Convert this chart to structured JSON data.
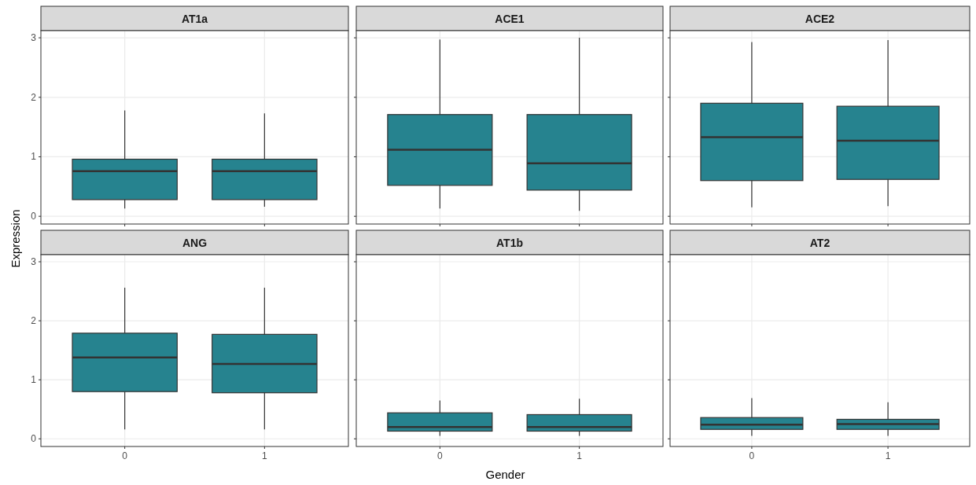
{
  "chart_data": [
    {
      "type": "box",
      "title": "AT1a",
      "ylabel": "Expression",
      "categories": [
        "0",
        "1"
      ],
      "color": "#26838f",
      "ylim": [
        -0.13,
        3.12
      ],
      "yticks": [
        0,
        1,
        2,
        3
      ],
      "grid": true,
      "tick_labels": "y",
      "boxes": [
        {
          "low": 0.13,
          "q1": 0.28,
          "median": 0.76,
          "q3": 0.96,
          "high": 1.78
        },
        {
          "low": 0.16,
          "q1": 0.28,
          "median": 0.76,
          "q3": 0.96,
          "high": 1.73
        }
      ]
    },
    {
      "type": "box",
      "title": "ACE1",
      "categories": [
        "0",
        "1"
      ],
      "color": "#26838f",
      "ylim": [
        -0.13,
        3.12
      ],
      "yticks": [
        0,
        1,
        2,
        3
      ],
      "grid": true,
      "tick_labels": false,
      "boxes": [
        {
          "low": 0.13,
          "q1": 0.52,
          "median": 1.12,
          "q3": 1.71,
          "high": 2.97
        },
        {
          "low": 0.09,
          "q1": 0.44,
          "median": 0.89,
          "q3": 1.71,
          "high": 3.0
        }
      ]
    },
    {
      "type": "box",
      "title": "ACE2",
      "categories": [
        "0",
        "1"
      ],
      "color": "#26838f",
      "ylim": [
        -0.13,
        3.12
      ],
      "yticks": [
        0,
        1,
        2,
        3
      ],
      "grid": true,
      "tick_labels": false,
      "boxes": [
        {
          "low": 0.15,
          "q1": 0.6,
          "median": 1.33,
          "q3": 1.9,
          "high": 2.93
        },
        {
          "low": 0.17,
          "q1": 0.62,
          "median": 1.27,
          "q3": 1.85,
          "high": 2.96
        }
      ]
    },
    {
      "type": "box",
      "title": "ANG",
      "categories": [
        "0",
        "1"
      ],
      "color": "#26838f",
      "ylim": [
        -0.13,
        3.12
      ],
      "yticks": [
        0,
        1,
        2,
        3
      ],
      "grid": true,
      "boxes": [
        {
          "low": 0.16,
          "q1": 0.8,
          "median": 1.38,
          "q3": 1.79,
          "high": 2.56
        },
        {
          "low": 0.16,
          "q1": 0.78,
          "median": 1.27,
          "q3": 1.77,
          "high": 2.56
        }
      ]
    },
    {
      "type": "box",
      "title": "AT1b",
      "xlabel": "Gender",
      "categories": [
        "0",
        "1"
      ],
      "color": "#26838f",
      "ylim": [
        -0.13,
        3.12
      ],
      "yticks": [
        0,
        1,
        2,
        3
      ],
      "grid": true,
      "tick_labels": "x",
      "boxes": [
        {
          "low": 0.05,
          "q1": 0.13,
          "median": 0.2,
          "q3": 0.44,
          "high": 0.65
        },
        {
          "low": 0.05,
          "q1": 0.13,
          "median": 0.2,
          "q3": 0.41,
          "high": 0.68
        }
      ]
    },
    {
      "type": "box",
      "title": "AT2",
      "categories": [
        "0",
        "1"
      ],
      "color": "#26838f",
      "ylim": [
        -0.13,
        3.12
      ],
      "yticks": [
        0,
        1,
        2,
        3
      ],
      "grid": true,
      "tick_labels": "x",
      "boxes": [
        {
          "low": 0.05,
          "q1": 0.16,
          "median": 0.24,
          "q3": 0.36,
          "high": 0.69
        },
        {
          "low": 0.05,
          "q1": 0.16,
          "median": 0.25,
          "q3": 0.33,
          "high": 0.62
        }
      ]
    }
  ]
}
